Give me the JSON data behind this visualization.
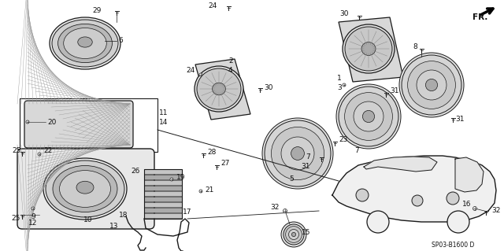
{
  "bg_color": "#ffffff",
  "diagram_code": "SP03-B1600 D",
  "lc": "#1a1a1a",
  "tc": "#111111",
  "fs": 6.5
}
